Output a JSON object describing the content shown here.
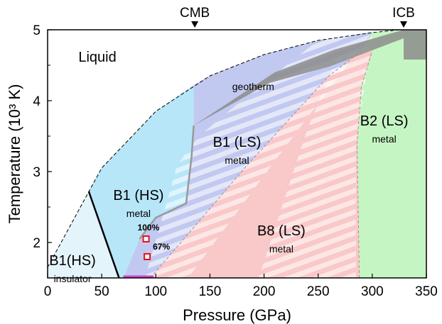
{
  "chart_data": {
    "type": "phase-diagram",
    "xlabel": "Pressure (GPa)",
    "ylabel": "Temperature (10³ K)",
    "xlim": [
      0,
      350
    ],
    "ylim": [
      1.5,
      5.0
    ],
    "xticks": [
      "0",
      "50",
      "100",
      "150",
      "200",
      "250",
      "300",
      "350"
    ],
    "yticks": [
      "2",
      "3",
      "4",
      "5"
    ],
    "top_markers": [
      {
        "label": "CMB",
        "x": 136
      },
      {
        "label": "ICB",
        "x": 329
      }
    ],
    "regions": [
      {
        "label": "Liquid",
        "sublabel": "",
        "x": 46,
        "y": 4.55
      },
      {
        "label": "B1 (HS)",
        "sublabel": "metal",
        "x": 84,
        "y": 2.6
      },
      {
        "label": "B1(HS)",
        "sublabel": "insulator",
        "x": 23,
        "y": 1.68
      },
      {
        "label": "B1 (LS)",
        "sublabel": "metal",
        "x": 175,
        "y": 3.35
      },
      {
        "label": "B8 (LS)",
        "sublabel": "metal",
        "x": 216,
        "y": 2.1
      },
      {
        "label": "B2 (LS)",
        "sublabel": "metal",
        "x": 311,
        "y": 3.65
      }
    ],
    "geotherm_label": "geotherm",
    "data_points": [
      {
        "x": 91,
        "y": 2.05,
        "label": "100%"
      },
      {
        "x": 92,
        "y": 1.8,
        "label": "67%"
      }
    ],
    "boundaries": {
      "melting_curve": [
        [
          0,
          1.65
        ],
        [
          50,
          3.05
        ],
        [
          100,
          3.85
        ],
        [
          150,
          4.35
        ],
        [
          200,
          4.65
        ],
        [
          250,
          4.85
        ],
        [
          300,
          4.96
        ],
        [
          325,
          5.0
        ]
      ],
      "insulator_metal": [
        [
          38,
          2.72
        ],
        [
          66,
          1.5
        ]
      ],
      "hs_ls_transition": [
        [
          135,
          3.65
        ],
        [
          133,
          3.2
        ],
        [
          128,
          2.55
        ],
        [
          100,
          2.35
        ],
        [
          85,
          2.05
        ]
      ],
      "b1_b8": [
        [
          95,
          1.5
        ],
        [
          140,
          2.3
        ],
        [
          185,
          3.1
        ],
        [
          215,
          3.6
        ],
        [
          260,
          4.35
        ],
        [
          290,
          4.7
        ]
      ],
      "b8_b2": [
        [
          288,
          1.5
        ],
        [
          287,
          2.5
        ],
        [
          286,
          3.4
        ],
        [
          290,
          4.2
        ],
        [
          300,
          4.7
        ]
      ]
    },
    "geotherm_band": [
      [
        135,
        3.65
      ],
      [
        205,
        4.25
      ],
      [
        260,
        4.48
      ],
      [
        329,
        4.88
      ],
      [
        329,
        5.0
      ],
      [
        265,
        4.72
      ],
      [
        210,
        4.4
      ],
      [
        135,
        3.65
      ]
    ],
    "colors": {
      "liquid": "#ffffff",
      "b1_hs_insulator": "#e4f4fb",
      "b1_hs_metal": "#b7e6f8",
      "b1_ls": "#c2c9f0",
      "b8": "#f9c8c8",
      "b2": "#c6f5c4",
      "geotherm": "#8c8c8c",
      "marker": "#e8101a",
      "magenta": "#cc44cc"
    }
  }
}
